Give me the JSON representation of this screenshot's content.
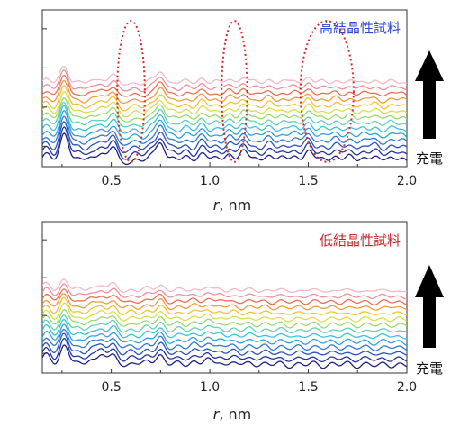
{
  "chart_data": [
    {
      "type": "line",
      "title": "",
      "annotation": "高結晶性試料",
      "annotation_color": "#2e46d6",
      "xlabel": "r, nm",
      "ylabel": "",
      "xlim": [
        0.15,
        2.0
      ],
      "xticks": [
        "0.5",
        "1.0",
        "1.5",
        "2.0"
      ],
      "grid": false,
      "arrow_label": "充電",
      "series_count": 14,
      "color_order": "dark blue (bottom) to light pink (top)",
      "highlighted_regions_r_nm": [
        [
          0.53,
          0.67
        ],
        [
          1.06,
          1.19
        ],
        [
          1.46,
          1.73
        ]
      ],
      "highlight_color": "#d22a2a",
      "peak_positions_r_nm": [
        0.17,
        0.26,
        0.33,
        0.4,
        0.45,
        0.51,
        0.62,
        0.7,
        0.75,
        0.81,
        0.88,
        0.96,
        1.03,
        1.1,
        1.17,
        1.23,
        1.3,
        1.37,
        1.43,
        1.5,
        1.57,
        1.64,
        1.71,
        1.78,
        1.84,
        1.92,
        1.98
      ],
      "peak_heights": [
        0.9,
        2.6,
        0.55,
        0.6,
        0.85,
        1.4,
        0.5,
        0.7,
        1.7,
        0.55,
        0.7,
        1.05,
        0.6,
        0.9,
        1.1,
        0.55,
        0.85,
        0.6,
        0.7,
        1.15,
        0.6,
        0.75,
        0.7,
        0.6,
        0.7,
        0.65,
        0.55
      ]
    },
    {
      "type": "line",
      "title": "",
      "annotation": "低結晶性試料",
      "annotation_color": "#c3262a",
      "xlabel": "r, nm",
      "ylabel": "",
      "xlim": [
        0.15,
        2.0
      ],
      "xticks": [
        "0.5",
        "1.0",
        "1.5",
        "2.0"
      ],
      "grid": false,
      "arrow_label": "充電",
      "series_count": 14,
      "color_order": "dark blue (bottom) to light pink (top)",
      "peak_positions_r_nm": [
        0.17,
        0.26,
        0.33,
        0.4,
        0.45,
        0.51,
        0.6,
        0.68,
        0.75,
        0.84,
        0.92,
        0.99,
        1.05,
        1.12,
        1.2,
        1.28,
        1.36,
        1.45,
        1.53,
        1.62,
        1.7,
        1.79,
        1.88,
        1.96
      ],
      "peak_heights": [
        1.3,
        2.0,
        0.55,
        0.75,
        1.0,
        1.2,
        0.5,
        0.7,
        1.2,
        0.55,
        0.65,
        0.75,
        0.5,
        0.55,
        0.55,
        0.5,
        0.5,
        0.45,
        0.5,
        0.45,
        0.5,
        0.45,
        0.45,
        0.4
      ]
    }
  ]
}
